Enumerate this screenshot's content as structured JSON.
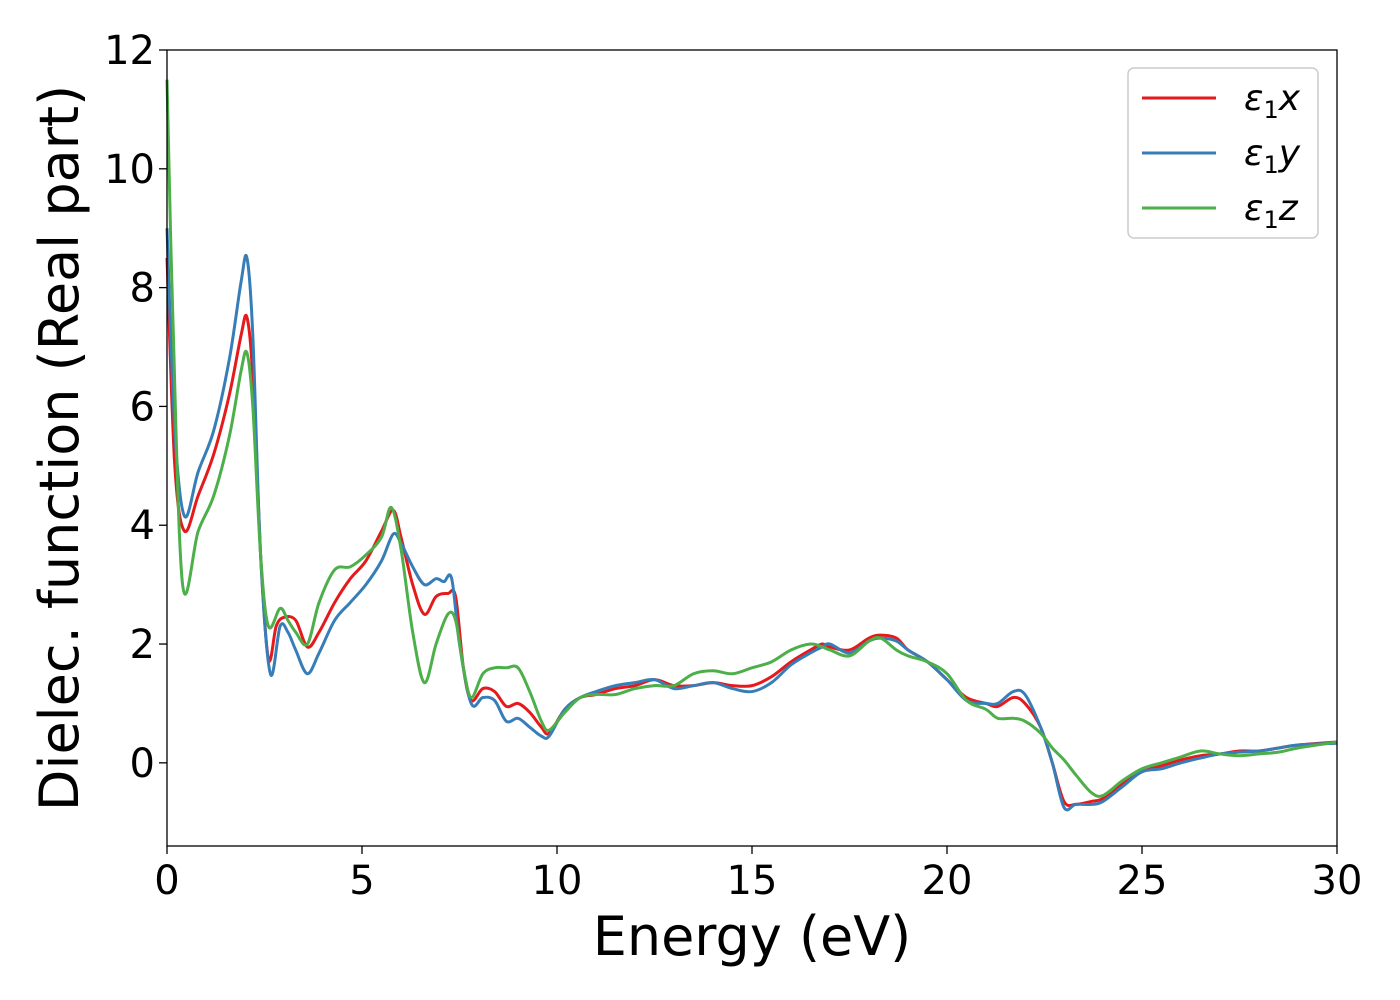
{
  "chart_data": {
    "type": "line",
    "xlabel": "Energy (eV)",
    "ylabel": "Dielec. function (Real part)",
    "xlim": [
      0,
      30
    ],
    "ylim": [
      -1.4,
      12
    ],
    "xticks": [
      0,
      5,
      10,
      15,
      20,
      25,
      30
    ],
    "yticks": [
      0,
      2,
      4,
      6,
      8,
      10,
      12
    ],
    "grid": false,
    "legend_position": "top-right",
    "series": [
      {
        "name": "x",
        "legend_prefix": "ε",
        "legend_sub": "1",
        "color": "#e41a1c",
        "x": [
          0,
          0.2,
          0.45,
          0.8,
          1.2,
          1.6,
          1.9,
          2.05,
          2.2,
          2.4,
          2.6,
          2.8,
          3.0,
          3.3,
          3.6,
          3.9,
          4.3,
          4.7,
          5.1,
          5.5,
          5.8,
          6.0,
          6.3,
          6.6,
          6.9,
          7.2,
          7.4,
          7.6,
          7.8,
          8.1,
          8.4,
          8.7,
          9.0,
          9.3,
          9.6,
          9.8,
          10.2,
          10.6,
          11.0,
          11.5,
          12.0,
          12.5,
          13.0,
          13.5,
          14.0,
          14.5,
          15.0,
          15.5,
          16.0,
          16.5,
          16.8,
          17.0,
          17.5,
          18.0,
          18.3,
          18.7,
          19.0,
          19.5,
          20.0,
          20.5,
          21.0,
          21.3,
          21.7,
          22.0,
          22.4,
          22.7,
          23.0,
          23.3,
          23.7,
          24.0,
          24.5,
          25.0,
          25.5,
          26.0,
          26.5,
          27.0,
          27.5,
          28.0,
          28.5,
          29.0,
          30.0
        ],
        "y": [
          8.5,
          5.0,
          3.9,
          4.5,
          5.2,
          6.2,
          7.2,
          7.5,
          6.5,
          3.5,
          1.75,
          2.3,
          2.45,
          2.4,
          1.95,
          2.2,
          2.7,
          3.1,
          3.4,
          3.9,
          4.25,
          3.8,
          3.0,
          2.5,
          2.8,
          2.85,
          2.8,
          1.6,
          1.05,
          1.25,
          1.2,
          0.95,
          1.0,
          0.85,
          0.6,
          0.5,
          0.9,
          1.1,
          1.15,
          1.25,
          1.3,
          1.4,
          1.3,
          1.3,
          1.35,
          1.3,
          1.3,
          1.45,
          1.7,
          1.9,
          2.0,
          1.95,
          1.9,
          2.1,
          2.15,
          2.1,
          1.9,
          1.7,
          1.4,
          1.1,
          1.0,
          0.95,
          1.1,
          1.0,
          0.6,
          0.0,
          -0.65,
          -0.7,
          -0.65,
          -0.6,
          -0.35,
          -0.15,
          -0.05,
          0.05,
          0.12,
          0.15,
          0.2,
          0.2,
          0.25,
          0.3,
          0.35
        ]
      },
      {
        "name": "y",
        "legend_prefix": "ε",
        "legend_sub": "1",
        "color": "#377eb8",
        "x": [
          0,
          0.2,
          0.45,
          0.8,
          1.2,
          1.6,
          1.9,
          2.05,
          2.2,
          2.4,
          2.65,
          2.9,
          3.1,
          3.3,
          3.6,
          3.9,
          4.3,
          4.7,
          5.1,
          5.5,
          5.8,
          6.0,
          6.3,
          6.6,
          6.9,
          7.1,
          7.3,
          7.5,
          7.8,
          8.1,
          8.4,
          8.7,
          9.0,
          9.3,
          9.6,
          9.8,
          10.2,
          10.6,
          11.0,
          11.5,
          12.0,
          12.5,
          13.0,
          13.5,
          14.0,
          14.5,
          15.0,
          15.5,
          16.0,
          16.5,
          16.8,
          17.0,
          17.5,
          18.0,
          18.3,
          18.7,
          19.0,
          19.5,
          20.0,
          20.5,
          21.0,
          21.3,
          21.7,
          22.0,
          22.4,
          22.7,
          23.0,
          23.3,
          23.7,
          24.0,
          24.5,
          25.0,
          25.5,
          26.0,
          26.5,
          27.0,
          27.5,
          28.0,
          28.5,
          29.0,
          30.0
        ],
        "y": [
          9.0,
          5.6,
          4.15,
          4.9,
          5.6,
          6.8,
          8.1,
          8.5,
          7.2,
          3.5,
          1.5,
          2.3,
          2.2,
          1.9,
          1.5,
          1.85,
          2.4,
          2.7,
          3.0,
          3.4,
          3.85,
          3.7,
          3.3,
          3.0,
          3.1,
          3.05,
          3.1,
          2.0,
          1.0,
          1.1,
          1.05,
          0.7,
          0.75,
          0.6,
          0.45,
          0.45,
          0.9,
          1.1,
          1.2,
          1.3,
          1.35,
          1.4,
          1.25,
          1.3,
          1.35,
          1.25,
          1.2,
          1.35,
          1.65,
          1.85,
          1.95,
          2.0,
          1.85,
          2.05,
          2.1,
          2.05,
          1.9,
          1.7,
          1.4,
          1.05,
          1.0,
          1.0,
          1.2,
          1.15,
          0.6,
          0.0,
          -0.75,
          -0.7,
          -0.7,
          -0.65,
          -0.4,
          -0.15,
          -0.1,
          0.0,
          0.08,
          0.15,
          0.18,
          0.2,
          0.25,
          0.3,
          0.33
        ]
      },
      {
        "name": "z",
        "legend_prefix": "ε",
        "legend_sub": "1",
        "color": "#4daf4a",
        "x": [
          0,
          0.15,
          0.4,
          0.8,
          1.2,
          1.6,
          1.9,
          2.05,
          2.2,
          2.4,
          2.6,
          2.9,
          3.1,
          3.3,
          3.6,
          3.9,
          4.3,
          4.7,
          5.1,
          5.5,
          5.75,
          6.0,
          6.3,
          6.6,
          6.9,
          7.2,
          7.4,
          7.6,
          7.8,
          8.1,
          8.4,
          8.7,
          9.0,
          9.3,
          9.6,
          9.8,
          10.2,
          10.6,
          11.0,
          11.5,
          12.0,
          12.5,
          13.0,
          13.5,
          14.0,
          14.5,
          15.0,
          15.5,
          16.0,
          16.5,
          16.8,
          17.0,
          17.5,
          18.0,
          18.3,
          18.7,
          19.0,
          19.5,
          20.0,
          20.5,
          21.0,
          21.3,
          21.7,
          22.0,
          22.4,
          22.7,
          23.0,
          23.3,
          23.7,
          24.0,
          24.5,
          25.0,
          25.5,
          26.0,
          26.5,
          27.0,
          27.5,
          28.0,
          28.5,
          29.0,
          30.0
        ],
        "y": [
          11.5,
          7.5,
          3.0,
          3.9,
          4.5,
          5.5,
          6.6,
          6.9,
          6.0,
          3.5,
          2.3,
          2.6,
          2.4,
          2.2,
          2.0,
          2.7,
          3.25,
          3.3,
          3.5,
          3.8,
          4.3,
          3.6,
          2.2,
          1.35,
          2.0,
          2.5,
          2.4,
          1.6,
          1.1,
          1.5,
          1.6,
          1.6,
          1.6,
          1.2,
          0.7,
          0.55,
          0.85,
          1.1,
          1.15,
          1.15,
          1.25,
          1.3,
          1.3,
          1.5,
          1.55,
          1.5,
          1.6,
          1.7,
          1.9,
          2.0,
          1.95,
          1.9,
          1.8,
          2.05,
          2.1,
          1.9,
          1.8,
          1.7,
          1.5,
          1.05,
          0.9,
          0.75,
          0.75,
          0.7,
          0.5,
          0.25,
          0.05,
          -0.2,
          -0.5,
          -0.55,
          -0.3,
          -0.1,
          0.0,
          0.1,
          0.2,
          0.15,
          0.12,
          0.15,
          0.18,
          0.25,
          0.35
        ]
      }
    ]
  }
}
